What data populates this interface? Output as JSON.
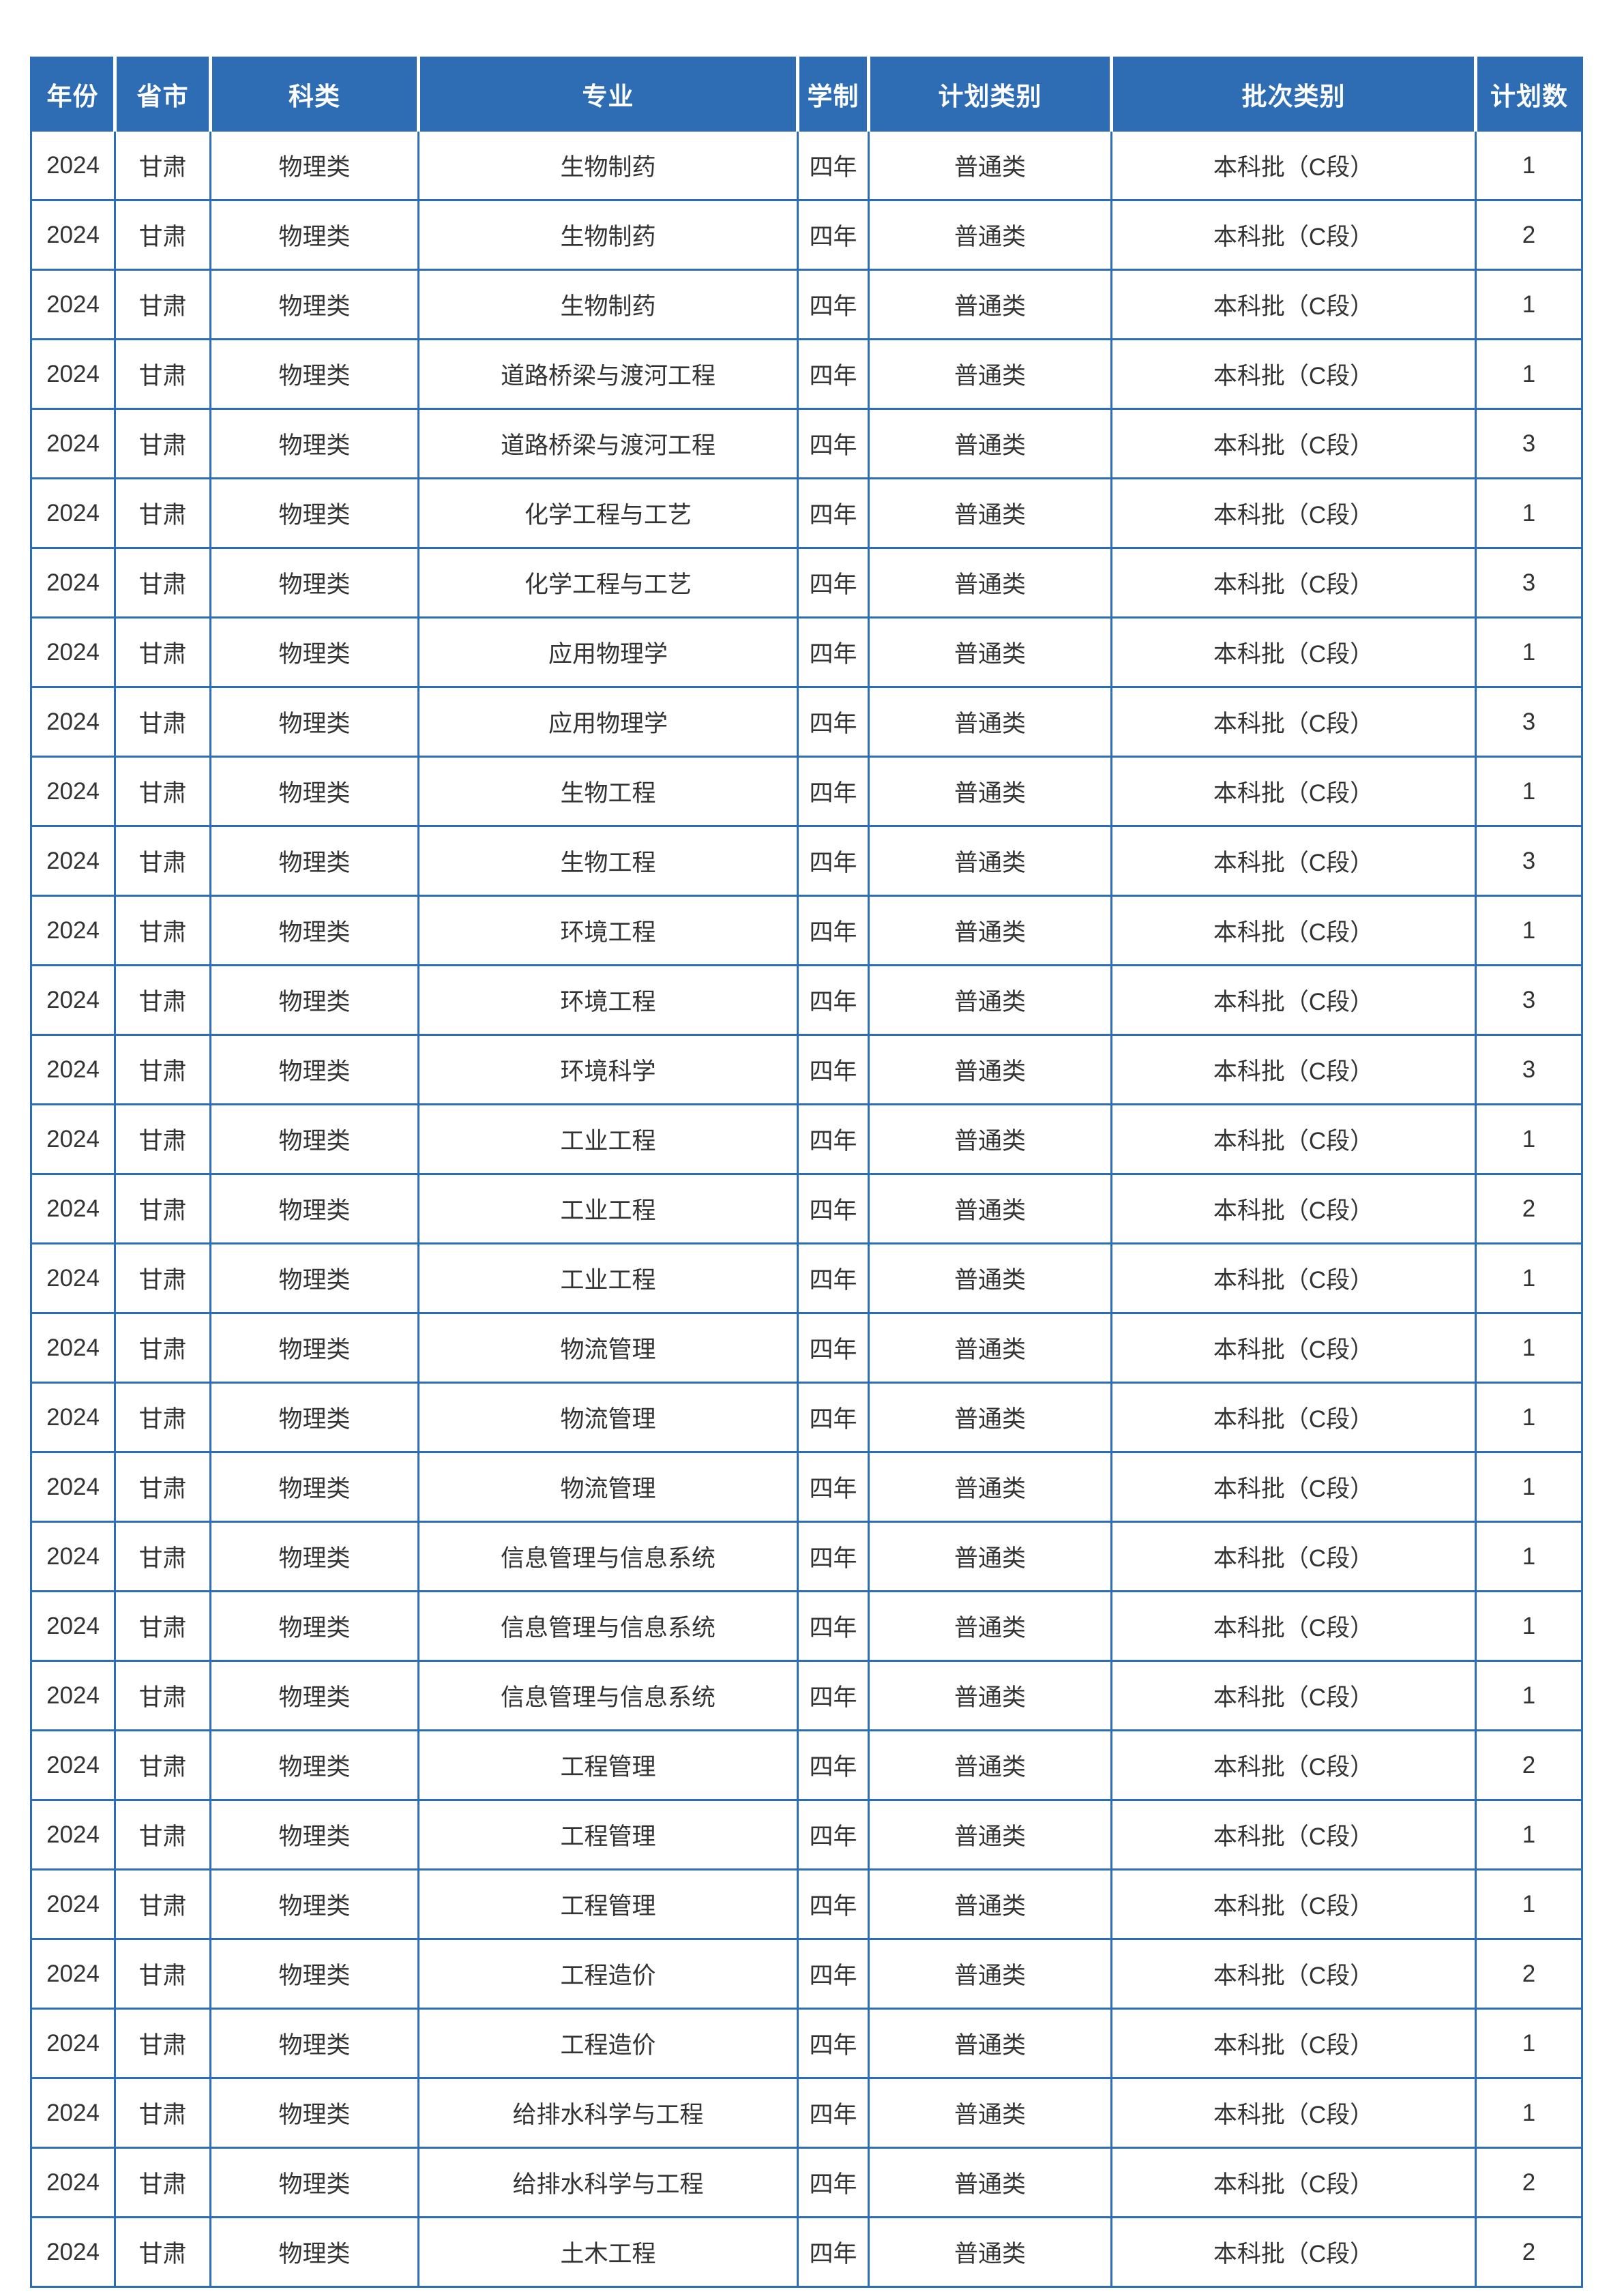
{
  "page": {
    "background": "#ffffff"
  },
  "colors": {
    "header_bg": "#2e6cb3",
    "header_text": "#ffffff",
    "border": "#2c6db9",
    "body_text": "#333333",
    "cell_bg": "#ffffff"
  },
  "table": {
    "columns": [
      {
        "key": "year",
        "label": "年份"
      },
      {
        "key": "province",
        "label": "省市"
      },
      {
        "key": "subject_category",
        "label": "科类"
      },
      {
        "key": "major",
        "label": "专业"
      },
      {
        "key": "duration",
        "label": "学制"
      },
      {
        "key": "plan_category",
        "label": "计划类别"
      },
      {
        "key": "batch_category",
        "label": "批次类别"
      },
      {
        "key": "plan_count",
        "label": "计划数"
      }
    ],
    "rows": [
      [
        "2024",
        "甘肃",
        "物理类",
        "生物制药",
        "四年",
        "普通类",
        "本科批（C段）",
        "1"
      ],
      [
        "2024",
        "甘肃",
        "物理类",
        "生物制药",
        "四年",
        "普通类",
        "本科批（C段）",
        "2"
      ],
      [
        "2024",
        "甘肃",
        "物理类",
        "生物制药",
        "四年",
        "普通类",
        "本科批（C段）",
        "1"
      ],
      [
        "2024",
        "甘肃",
        "物理类",
        "道路桥梁与渡河工程",
        "四年",
        "普通类",
        "本科批（C段）",
        "1"
      ],
      [
        "2024",
        "甘肃",
        "物理类",
        "道路桥梁与渡河工程",
        "四年",
        "普通类",
        "本科批（C段）",
        "3"
      ],
      [
        "2024",
        "甘肃",
        "物理类",
        "化学工程与工艺",
        "四年",
        "普通类",
        "本科批（C段）",
        "1"
      ],
      [
        "2024",
        "甘肃",
        "物理类",
        "化学工程与工艺",
        "四年",
        "普通类",
        "本科批（C段）",
        "3"
      ],
      [
        "2024",
        "甘肃",
        "物理类",
        "应用物理学",
        "四年",
        "普通类",
        "本科批（C段）",
        "1"
      ],
      [
        "2024",
        "甘肃",
        "物理类",
        "应用物理学",
        "四年",
        "普通类",
        "本科批（C段）",
        "3"
      ],
      [
        "2024",
        "甘肃",
        "物理类",
        "生物工程",
        "四年",
        "普通类",
        "本科批（C段）",
        "1"
      ],
      [
        "2024",
        "甘肃",
        "物理类",
        "生物工程",
        "四年",
        "普通类",
        "本科批（C段）",
        "3"
      ],
      [
        "2024",
        "甘肃",
        "物理类",
        "环境工程",
        "四年",
        "普通类",
        "本科批（C段）",
        "1"
      ],
      [
        "2024",
        "甘肃",
        "物理类",
        "环境工程",
        "四年",
        "普通类",
        "本科批（C段）",
        "3"
      ],
      [
        "2024",
        "甘肃",
        "物理类",
        "环境科学",
        "四年",
        "普通类",
        "本科批（C段）",
        "3"
      ],
      [
        "2024",
        "甘肃",
        "物理类",
        "工业工程",
        "四年",
        "普通类",
        "本科批（C段）",
        "1"
      ],
      [
        "2024",
        "甘肃",
        "物理类",
        "工业工程",
        "四年",
        "普通类",
        "本科批（C段）",
        "2"
      ],
      [
        "2024",
        "甘肃",
        "物理类",
        "工业工程",
        "四年",
        "普通类",
        "本科批（C段）",
        "1"
      ],
      [
        "2024",
        "甘肃",
        "物理类",
        "物流管理",
        "四年",
        "普通类",
        "本科批（C段）",
        "1"
      ],
      [
        "2024",
        "甘肃",
        "物理类",
        "物流管理",
        "四年",
        "普通类",
        "本科批（C段）",
        "1"
      ],
      [
        "2024",
        "甘肃",
        "物理类",
        "物流管理",
        "四年",
        "普通类",
        "本科批（C段）",
        "1"
      ],
      [
        "2024",
        "甘肃",
        "物理类",
        "信息管理与信息系统",
        "四年",
        "普通类",
        "本科批（C段）",
        "1"
      ],
      [
        "2024",
        "甘肃",
        "物理类",
        "信息管理与信息系统",
        "四年",
        "普通类",
        "本科批（C段）",
        "1"
      ],
      [
        "2024",
        "甘肃",
        "物理类",
        "信息管理与信息系统",
        "四年",
        "普通类",
        "本科批（C段）",
        "1"
      ],
      [
        "2024",
        "甘肃",
        "物理类",
        "工程管理",
        "四年",
        "普通类",
        "本科批（C段）",
        "2"
      ],
      [
        "2024",
        "甘肃",
        "物理类",
        "工程管理",
        "四年",
        "普通类",
        "本科批（C段）",
        "1"
      ],
      [
        "2024",
        "甘肃",
        "物理类",
        "工程管理",
        "四年",
        "普通类",
        "本科批（C段）",
        "1"
      ],
      [
        "2024",
        "甘肃",
        "物理类",
        "工程造价",
        "四年",
        "普通类",
        "本科批（C段）",
        "2"
      ],
      [
        "2024",
        "甘肃",
        "物理类",
        "工程造价",
        "四年",
        "普通类",
        "本科批（C段）",
        "1"
      ],
      [
        "2024",
        "甘肃",
        "物理类",
        "给排水科学与工程",
        "四年",
        "普通类",
        "本科批（C段）",
        "1"
      ],
      [
        "2024",
        "甘肃",
        "物理类",
        "给排水科学与工程",
        "四年",
        "普通类",
        "本科批（C段）",
        "2"
      ],
      [
        "2024",
        "甘肃",
        "物理类",
        "土木工程",
        "四年",
        "普通类",
        "本科批（C段）",
        "2"
      ]
    ]
  }
}
